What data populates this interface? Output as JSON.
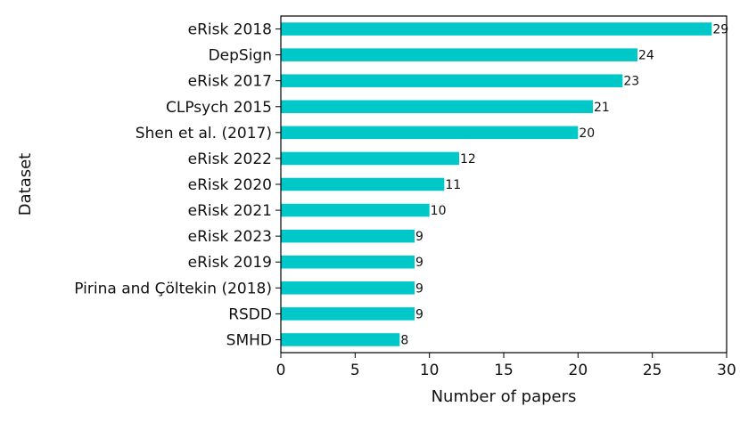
{
  "chart_data": {
    "type": "bar",
    "orientation": "horizontal",
    "title": "",
    "xlabel": "Number of papers",
    "ylabel": "Dataset",
    "xlim": [
      0,
      30
    ],
    "xticks": [
      0,
      5,
      10,
      15,
      20,
      25,
      30
    ],
    "bar_color": "#00c8c8",
    "grid": false,
    "categories": [
      "eRisk 2018",
      "DepSign",
      "eRisk 2017",
      "CLPsych 2015",
      "Shen et al. (2017)",
      "eRisk 2022",
      "eRisk 2020",
      "eRisk 2021",
      "eRisk 2023",
      "eRisk 2019",
      "Pirina and Çöltekin (2018)",
      "RSDD",
      "SMHD"
    ],
    "values": [
      29,
      24,
      23,
      21,
      20,
      12,
      11,
      10,
      9,
      9,
      9,
      9,
      8
    ]
  }
}
